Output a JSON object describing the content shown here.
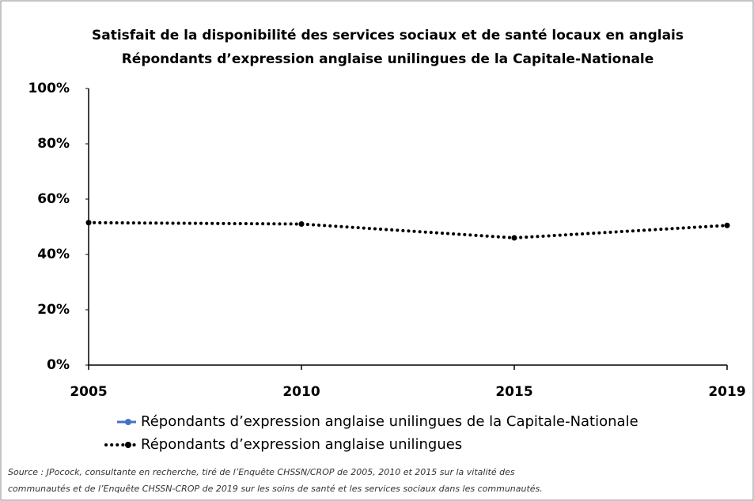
{
  "chart_data": {
    "type": "line",
    "title": [
      "Satisfait de la disponibilité des services sociaux et de santé locaux en anglais",
      "Répondants d’expression anglaise unilingues de la Capitale-Nationale"
    ],
    "categories": [
      "2005",
      "2010",
      "2015",
      "2019"
    ],
    "series": [
      {
        "name": "Répondants d’expression anglaise unilingues de la Capitale-Nationale",
        "color": "#4472c4",
        "style": "solid",
        "values": [
          null,
          null,
          null,
          null
        ]
      },
      {
        "name": "Répondants d’expression anglaise unilingues",
        "color": "#000000",
        "style": "dotted",
        "values": [
          51.5,
          51,
          46,
          50.5
        ]
      }
    ],
    "ylim": [
      0,
      100
    ],
    "yticks": [
      {
        "value": 0,
        "label": "0%"
      },
      {
        "value": 20,
        "label": "20%"
      },
      {
        "value": 40,
        "label": "40%"
      },
      {
        "value": 60,
        "label": "60%"
      },
      {
        "value": 80,
        "label": "80%"
      },
      {
        "value": 100,
        "label": "100%"
      }
    ],
    "grid": false,
    "legend": "bottom",
    "source": [
      "Source : JPocock, consultante en recherche, tiré de l’Enquête CHSSN/CROP de 2005, 2010 et 2015 sur la vitalité des",
      "communautés et de l’Enquête CHSSN-CROP de 2019 sur les soins de santé et les services sociaux dans les communautés."
    ]
  }
}
